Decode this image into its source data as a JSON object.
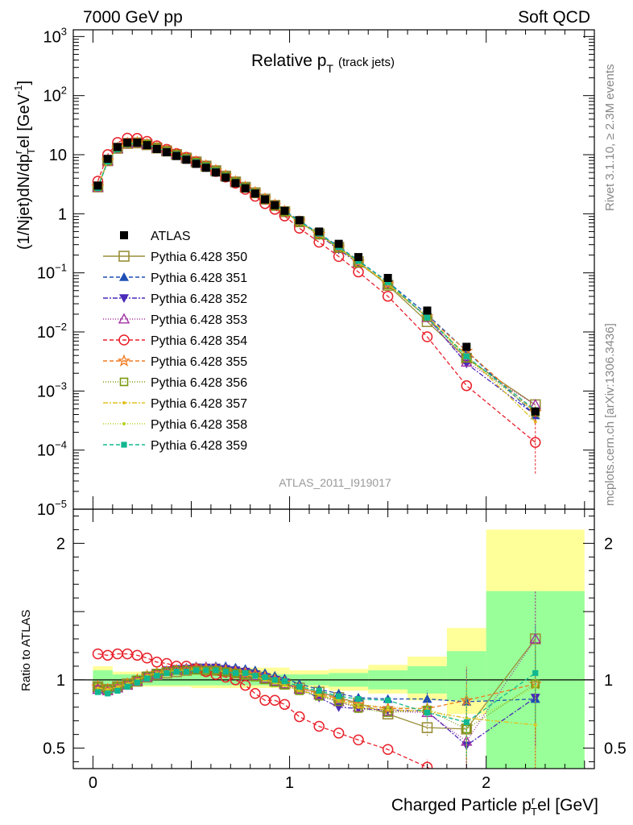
{
  "header": {
    "left": "7000 GeV pp",
    "right": "Soft QCD"
  },
  "side": {
    "rivet": "Rivet 3.1.10, ≥ 2.3M events",
    "mcplots": "mcplots.cern.ch [arXiv:1306.3436]"
  },
  "chart_data": {
    "type": "scatter",
    "title": "Relative p_T (track jets)",
    "title_main": "Relative p",
    "title_sub": "T",
    "title_note": "(track jets)",
    "analysis_label": "ATLAS_2011_I919017",
    "xlabel": "Charged Particle p_T^rel [GeV]",
    "xlabel_main": "Charged Particle p",
    "xlabel_sub": "T",
    "xlabel_sup": "r",
    "xlabel_tail": "el [GeV]",
    "ylabel": "(1/Njet)dN/dp_T^rel [GeV^-1]",
    "ylabel_a": "(1/Njet)dN/dp",
    "ylabel_sup1": "r",
    "ylabel_sub": "T",
    "ylabel_b": "el [GeV",
    "ylabel_sup2": "-1",
    "ylabel_c": "]",
    "ratio_ylabel": "Ratio to ATLAS",
    "xlim": [
      -0.1,
      2.55
    ],
    "ylim": [
      1e-05,
      1300
    ],
    "yscale": "log",
    "ratio_ylim": [
      0.35,
      2.25
    ],
    "x_ticks": [
      "0",
      "1",
      "2"
    ],
    "y_ticks": [
      {
        "base": "10",
        "exp": "3"
      },
      {
        "base": "10",
        "exp": "2"
      },
      {
        "base": "10",
        "exp": ""
      },
      {
        "base": "1",
        "exp": ""
      },
      {
        "base": "10",
        "exp": "−1"
      },
      {
        "base": "10",
        "exp": "−2"
      },
      {
        "base": "10",
        "exp": "−3"
      },
      {
        "base": "10",
        "exp": "−4"
      },
      {
        "base": "10",
        "exp": "−5"
      }
    ],
    "ratio_y_ticks": [
      "2",
      "1",
      "0.5"
    ],
    "legend_position": "middle-left",
    "x": [
      0.025,
      0.075,
      0.125,
      0.175,
      0.225,
      0.275,
      0.325,
      0.375,
      0.425,
      0.475,
      0.525,
      0.575,
      0.625,
      0.675,
      0.725,
      0.775,
      0.825,
      0.875,
      0.925,
      0.975,
      1.05,
      1.15,
      1.25,
      1.35,
      1.5,
      1.7,
      1.9,
      2.25
    ],
    "atlas": [
      3.0,
      8.5,
      13.5,
      16.0,
      16.0,
      14.5,
      12.5,
      11.0,
      9.5,
      8.2,
      7.0,
      6.0,
      5.0,
      4.1,
      3.3,
      2.7,
      2.2,
      1.75,
      1.4,
      1.12,
      0.78,
      0.5,
      0.31,
      0.185,
      0.082,
      0.023,
      0.0056,
      0.00045
    ],
    "band_stat": [
      {
        "x0": 0.0,
        "x1": 0.1,
        "lo": 0.93,
        "hi": 1.07
      },
      {
        "x0": 0.1,
        "x1": 0.5,
        "lo": 0.96,
        "hi": 1.04
      },
      {
        "x0": 0.5,
        "x1": 1.0,
        "lo": 0.96,
        "hi": 1.04
      },
      {
        "x0": 1.0,
        "x1": 1.2,
        "lo": 0.96,
        "hi": 1.04
      },
      {
        "x0": 1.2,
        "x1": 1.4,
        "lo": 0.95,
        "hi": 1.05
      },
      {
        "x0": 1.4,
        "x1": 1.6,
        "lo": 0.93,
        "hi": 1.07
      },
      {
        "x0": 1.6,
        "x1": 1.8,
        "lo": 0.9,
        "hi": 1.1
      },
      {
        "x0": 1.8,
        "x1": 2.0,
        "lo": 0.85,
        "hi": 1.21
      },
      {
        "x0": 2.0,
        "x1": 2.5,
        "lo": 0.35,
        "hi": 1.65
      }
    ],
    "band_total": [
      {
        "x0": 0.0,
        "x1": 0.1,
        "lo": 0.91,
        "hi": 1.1
      },
      {
        "x0": 0.1,
        "x1": 0.5,
        "lo": 0.95,
        "hi": 1.06
      },
      {
        "x0": 0.5,
        "x1": 1.0,
        "lo": 0.94,
        "hi": 1.09
      },
      {
        "x0": 1.0,
        "x1": 1.2,
        "lo": 0.94,
        "hi": 1.07
      },
      {
        "x0": 1.2,
        "x1": 1.4,
        "lo": 0.92,
        "hi": 1.08
      },
      {
        "x0": 1.4,
        "x1": 1.6,
        "lo": 0.9,
        "hi": 1.11
      },
      {
        "x0": 1.6,
        "x1": 1.8,
        "lo": 0.85,
        "hi": 1.17
      },
      {
        "x0": 1.8,
        "x1": 2.0,
        "lo": 0.75,
        "hi": 1.38
      },
      {
        "x0": 2.0,
        "x1": 2.5,
        "lo": 0.35,
        "hi": 2.1
      }
    ],
    "series": [
      {
        "name": "Pythia 6.428 350",
        "color": "#9a8f3a",
        "dash": "",
        "marker": "open-square",
        "ratio": [
          0.95,
          0.93,
          0.95,
          0.97,
          0.99,
          1.02,
          1.04,
          1.05,
          1.06,
          1.07,
          1.08,
          1.07,
          1.07,
          1.06,
          1.05,
          1.04,
          1.03,
          1.01,
          0.99,
          0.97,
          0.94,
          0.91,
          0.87,
          0.83,
          0.75,
          0.65,
          0.64,
          1.3
        ]
      },
      {
        "name": "Pythia 6.428 351",
        "color": "#1f4fb4",
        "dash": "5,3",
        "marker": "tri-up",
        "ratio": [
          0.94,
          0.93,
          0.95,
          0.97,
          1.0,
          1.03,
          1.05,
          1.07,
          1.08,
          1.09,
          1.1,
          1.1,
          1.1,
          1.1,
          1.09,
          1.08,
          1.07,
          1.05,
          1.03,
          1.01,
          0.97,
          0.93,
          0.9,
          0.87,
          0.86,
          0.86,
          0.84,
          0.86
        ]
      },
      {
        "name": "Pythia 6.428 352",
        "color": "#4a2ab8",
        "dash": "6,2,2,2",
        "marker": "tri-down",
        "ratio": [
          0.93,
          0.92,
          0.94,
          0.97,
          1.0,
          1.03,
          1.05,
          1.07,
          1.08,
          1.08,
          1.09,
          1.09,
          1.09,
          1.08,
          1.07,
          1.06,
          1.04,
          1.02,
          1.0,
          0.98,
          0.93,
          0.87,
          0.8,
          0.79,
          0.78,
          0.77,
          0.52,
          0.87
        ]
      },
      {
        "name": "Pythia 6.428 353",
        "color": "#a030a0",
        "dash": "1,2",
        "marker": "open-tri-up",
        "ratio": [
          0.93,
          0.92,
          0.94,
          0.96,
          0.99,
          1.02,
          1.04,
          1.06,
          1.07,
          1.08,
          1.09,
          1.09,
          1.08,
          1.07,
          1.06,
          1.05,
          1.03,
          1.01,
          0.99,
          0.97,
          0.93,
          0.89,
          0.84,
          0.8,
          0.77,
          0.76,
          0.55,
          1.3
        ]
      },
      {
        "name": "Pythia 6.428 354",
        "color": "#e8202a",
        "dash": "5,3",
        "marker": "open-circle",
        "ratio": [
          1.19,
          1.18,
          1.19,
          1.19,
          1.18,
          1.16,
          1.13,
          1.12,
          1.1,
          1.1,
          1.08,
          1.06,
          1.04,
          1.02,
          1.0,
          0.96,
          0.9,
          0.85,
          0.85,
          0.82,
          0.73,
          0.66,
          0.61,
          0.56,
          0.49,
          0.36,
          0.22,
          0.3
        ]
      },
      {
        "name": "Pythia 6.428 355",
        "color": "#f07a20",
        "dash": "5,3",
        "marker": "open-star",
        "ratio": [
          0.95,
          0.93,
          0.95,
          0.97,
          1.0,
          1.03,
          1.05,
          1.06,
          1.07,
          1.07,
          1.08,
          1.08,
          1.08,
          1.07,
          1.06,
          1.05,
          1.04,
          1.02,
          1.0,
          0.98,
          0.94,
          0.9,
          0.86,
          0.82,
          0.79,
          0.79,
          0.85,
          0.97
        ]
      },
      {
        "name": "Pythia 6.428 356",
        "color": "#7a9a10",
        "dash": "1,2",
        "marker": "open-square-small",
        "ratio": [
          0.95,
          0.93,
          0.95,
          0.97,
          1.0,
          1.03,
          1.05,
          1.06,
          1.07,
          1.07,
          1.07,
          1.07,
          1.07,
          1.06,
          1.05,
          1.04,
          1.02,
          1.0,
          0.98,
          0.96,
          0.92,
          0.88,
          0.84,
          0.79,
          0.76,
          0.78,
          0.64,
          0.97
        ]
      },
      {
        "name": "Pythia 6.428 357",
        "color": "#e0c020",
        "dash": "6,2,2,2",
        "marker": "dot",
        "ratio": [
          0.94,
          0.93,
          0.95,
          0.97,
          1.0,
          1.03,
          1.05,
          1.06,
          1.07,
          1.07,
          1.08,
          1.08,
          1.07,
          1.06,
          1.05,
          1.04,
          1.02,
          1.0,
          0.98,
          0.96,
          0.92,
          0.89,
          0.85,
          0.8,
          0.78,
          0.77,
          0.72,
          0.67
        ]
      },
      {
        "name": "Pythia 6.428 358",
        "color": "#b8d020",
        "dash": "1,2",
        "marker": "dot",
        "ratio": [
          0.93,
          0.92,
          0.94,
          0.97,
          1.0,
          1.03,
          1.05,
          1.06,
          1.07,
          1.07,
          1.07,
          1.07,
          1.07,
          1.06,
          1.05,
          1.04,
          1.02,
          1.0,
          0.98,
          0.96,
          0.92,
          0.89,
          0.85,
          0.82,
          0.8,
          0.79,
          0.68,
          0.95
        ]
      },
      {
        "name": "Pythia 6.428 359",
        "color": "#10b890",
        "dash": "5,3",
        "marker": "filled-square",
        "ratio": [
          0.91,
          0.9,
          0.92,
          0.95,
          0.98,
          1.01,
          1.03,
          1.05,
          1.06,
          1.06,
          1.07,
          1.07,
          1.07,
          1.06,
          1.05,
          1.05,
          1.03,
          1.02,
          1.0,
          0.99,
          0.95,
          0.92,
          0.88,
          0.86,
          0.85,
          0.76,
          0.69,
          1.05
        ]
      }
    ],
    "ref_name": "ATLAS"
  }
}
